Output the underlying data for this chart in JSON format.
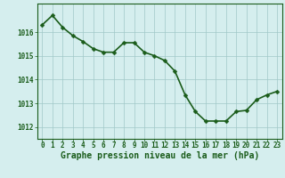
{
  "x": [
    0,
    1,
    2,
    3,
    4,
    5,
    6,
    7,
    8,
    9,
    10,
    11,
    12,
    13,
    14,
    15,
    16,
    17,
    18,
    19,
    20,
    21,
    22,
    23
  ],
  "y": [
    1016.3,
    1016.7,
    1016.2,
    1015.85,
    1015.6,
    1015.3,
    1015.15,
    1015.15,
    1015.55,
    1015.55,
    1015.15,
    1015.0,
    1014.8,
    1014.35,
    1013.35,
    1012.65,
    1012.25,
    1012.25,
    1012.25,
    1012.65,
    1012.7,
    1013.15,
    1013.35,
    1013.5
  ],
  "line_color": "#1a5c1a",
  "marker_color": "#1a5c1a",
  "bg_color": "#d5eeee",
  "grid_color": "#a0c8c8",
  "xlabel": "Graphe pression niveau de la mer (hPa)",
  "xlabel_color": "#1a5c1a",
  "tick_color": "#1a5c1a",
  "ylim": [
    1011.5,
    1017.2
  ],
  "yticks": [
    1012,
    1013,
    1014,
    1015,
    1016
  ],
  "xlim": [
    -0.5,
    23.5
  ],
  "xticks": [
    0,
    1,
    2,
    3,
    4,
    5,
    6,
    7,
    8,
    9,
    10,
    11,
    12,
    13,
    14,
    15,
    16,
    17,
    18,
    19,
    20,
    21,
    22,
    23
  ],
  "tick_fontsize": 5.5,
  "xlabel_fontsize": 7,
  "line_width": 1.2,
  "marker_size": 2.5
}
